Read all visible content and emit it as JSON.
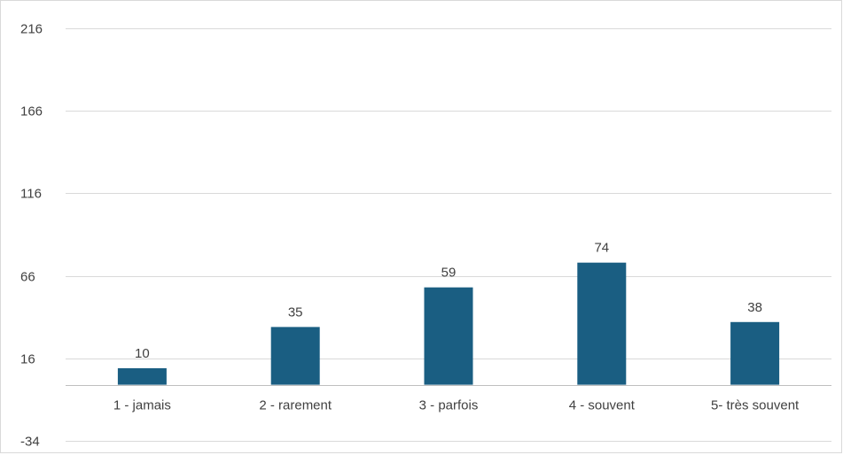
{
  "chart_data": {
    "type": "bar",
    "title": "",
    "xlabel": "",
    "ylabel": "",
    "categories": [
      "1 - jamais",
      "2 - rarement",
      "3 - parfois",
      "4 - souvent",
      "5- très souvent"
    ],
    "values": [
      10,
      35,
      59,
      74,
      38
    ],
    "data_labels": [
      "10",
      "35",
      "59",
      "74",
      "38"
    ],
    "yticks": [
      -34,
      16,
      66,
      116,
      166,
      216
    ],
    "ytick_labels": [
      "-34",
      "16",
      "66",
      "116",
      "166",
      "216"
    ],
    "ylim": [
      -34,
      216
    ],
    "baseline": 0,
    "grid": true,
    "legend": "none",
    "bar_color": "#1a5e82",
    "grid_color": "#d9d9d9",
    "axis_color": "#bfbfbf",
    "text_color": "#404040"
  }
}
